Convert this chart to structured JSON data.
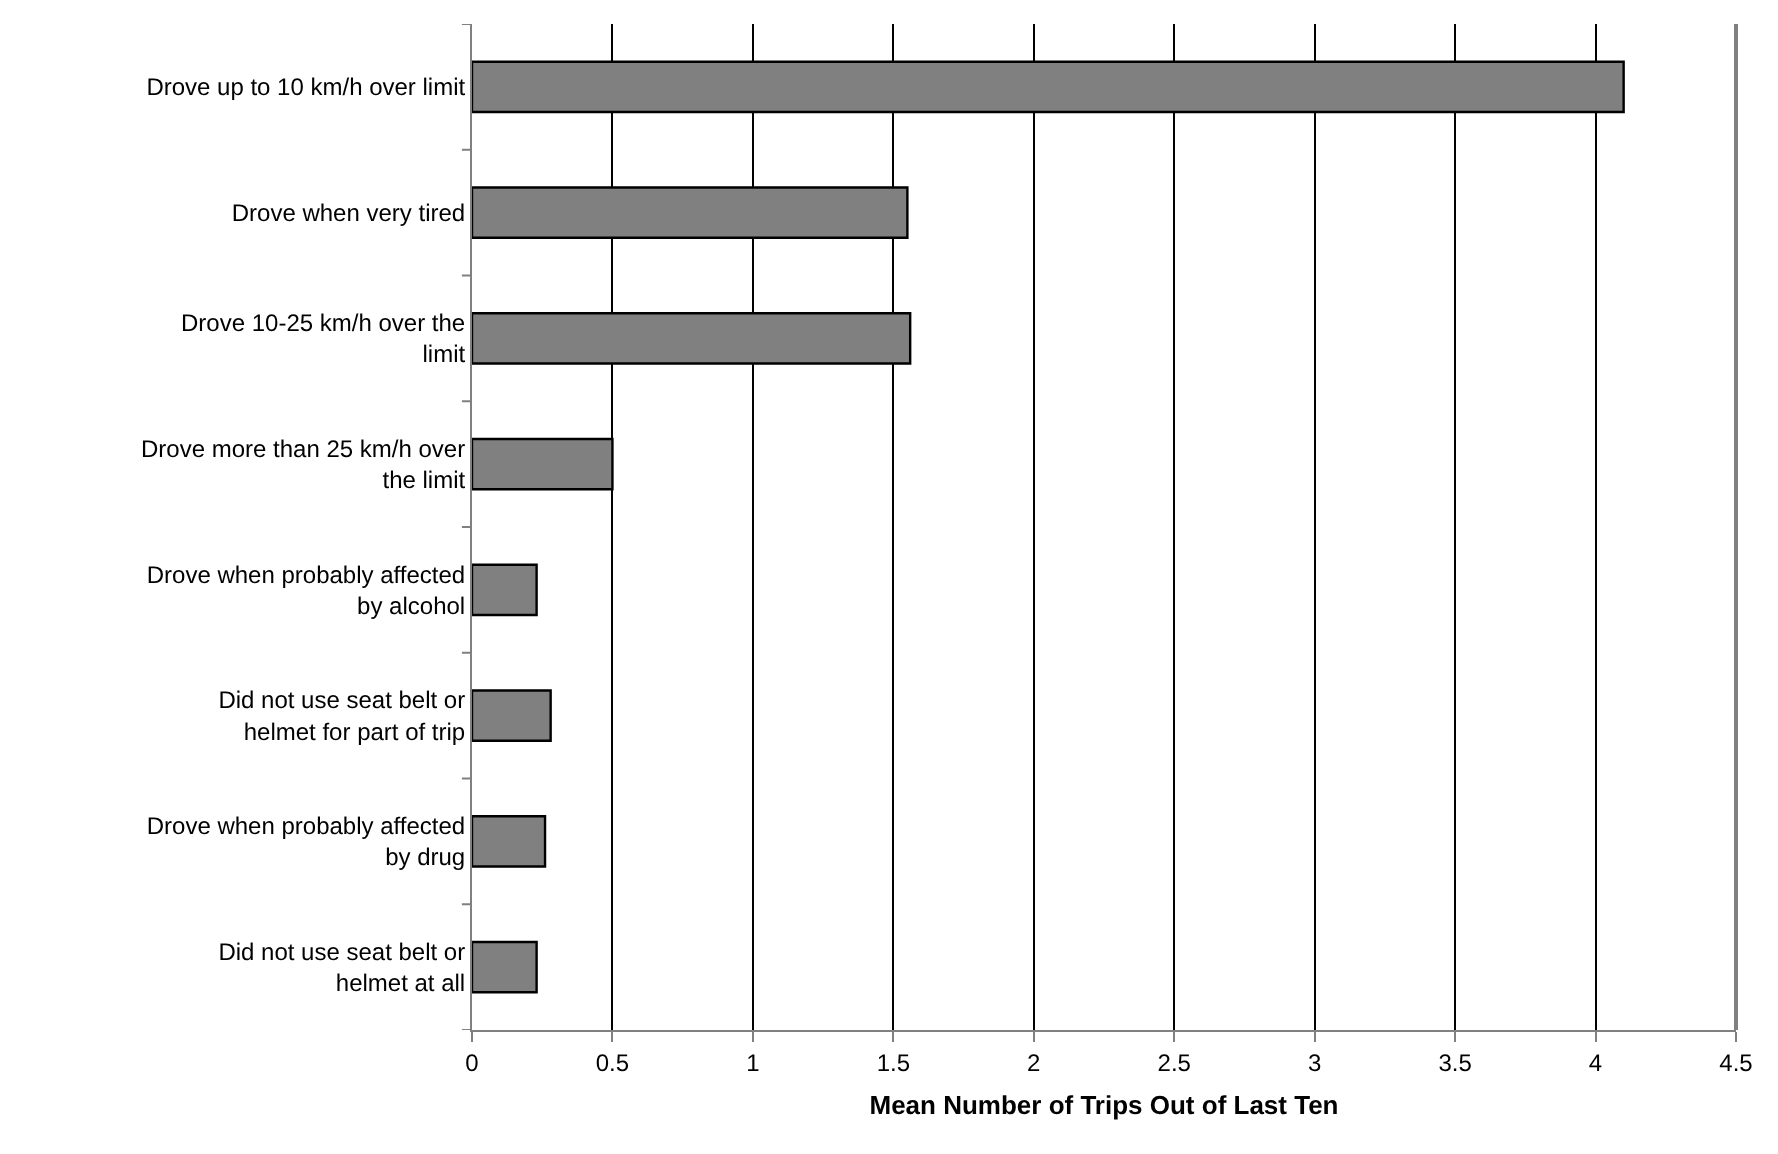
{
  "chart_data": {
    "type": "bar",
    "orientation": "horizontal",
    "xlabel": "Mean Number of Trips Out of Last Ten",
    "categories": [
      "Drove up to 10 km/h over limit",
      "Drove when very tired",
      "Drove 10-25 km/h over the limit",
      "Drove more than 25 km/h over the limit",
      "Drove when probably affected by alcohol",
      "Did not use seat belt or helmet for part of trip",
      "Drove when probably affected by drug",
      "Did not use seat belt or helmet at all"
    ],
    "values": [
      4.1,
      1.55,
      1.56,
      0.5,
      0.23,
      0.28,
      0.26,
      0.23
    ],
    "color": "#808080",
    "xlim": [
      0,
      4.5
    ],
    "xticks": [
      0,
      0.5,
      1,
      1.5,
      2,
      2.5,
      3,
      3.5,
      4,
      4.5
    ],
    "grid": "x"
  }
}
